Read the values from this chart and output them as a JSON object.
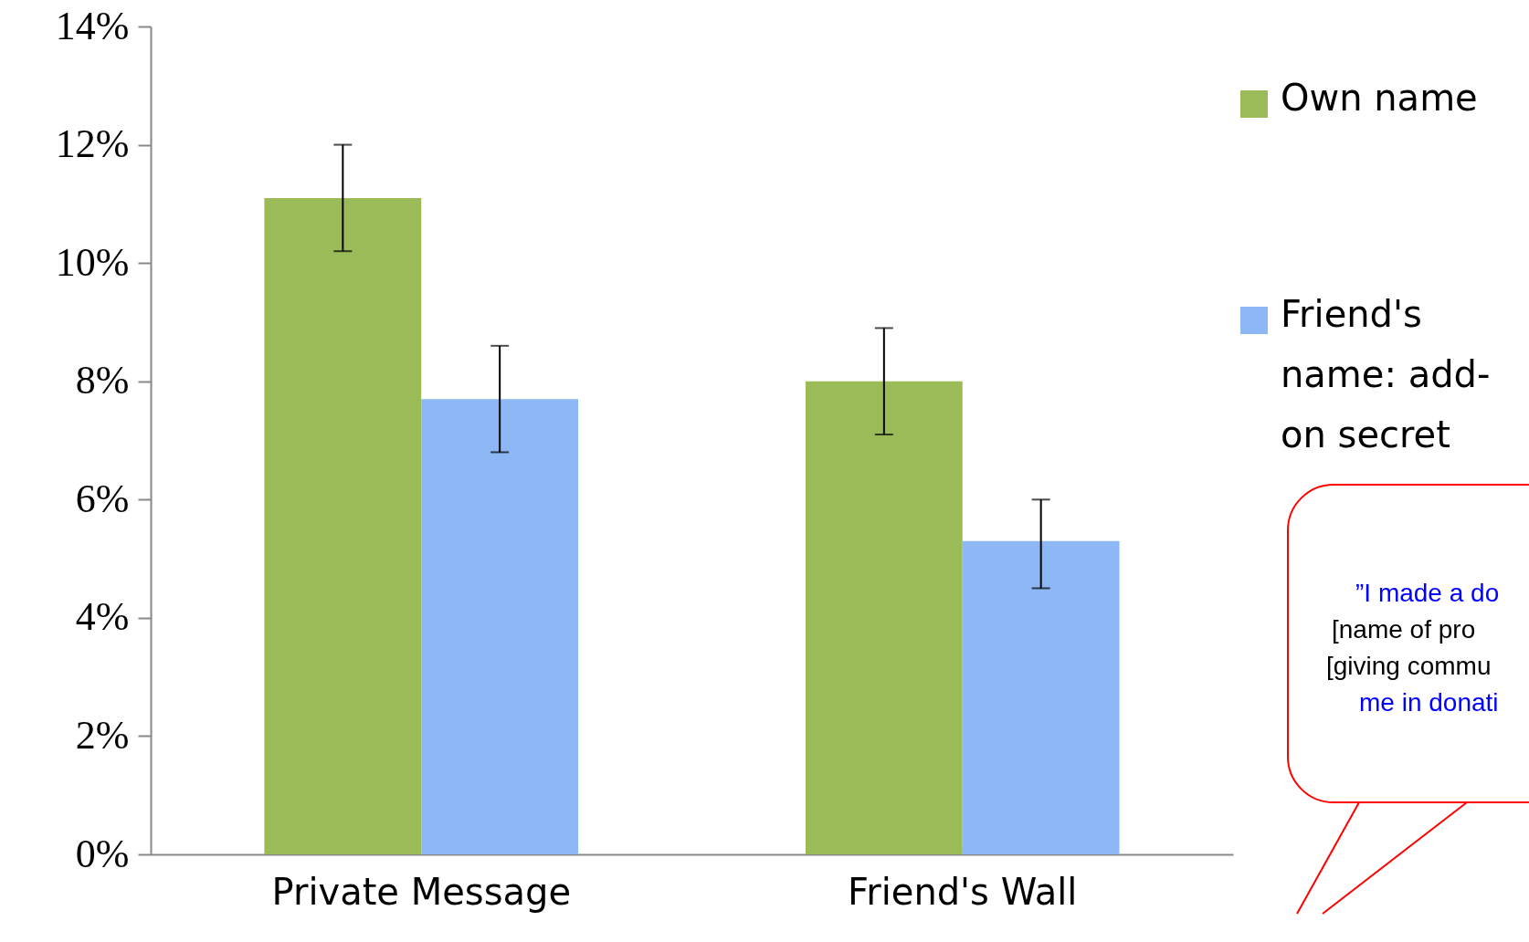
{
  "chart_data": {
    "type": "bar",
    "categories": [
      "Private Message",
      "Friend's Wall"
    ],
    "series": [
      {
        "name": "Own name",
        "color": "#9bbb59",
        "values": [
          11.1,
          8.0
        ],
        "errors": [
          [
            10.2,
            12.0
          ],
          [
            7.1,
            8.9
          ]
        ]
      },
      {
        "name": "Friend's name: add-on secret",
        "color": "#8db8f5",
        "values": [
          7.7,
          5.3
        ],
        "errors": [
          [
            6.8,
            8.6
          ],
          [
            4.5,
            6.0
          ]
        ]
      }
    ],
    "ylim": [
      0,
      14
    ],
    "yticks": [
      {
        "value": 0,
        "label": "0%"
      },
      {
        "value": 2,
        "label": "2%"
      },
      {
        "value": 4,
        "label": "4%"
      },
      {
        "value": 6,
        "label": "6%"
      },
      {
        "value": 8,
        "label": "8%"
      },
      {
        "value": 10,
        "label": "10%"
      },
      {
        "value": 12,
        "label": "12%"
      },
      {
        "value": 14,
        "label": "14%"
      }
    ],
    "grid": false,
    "legend": "right",
    "annotations": [
      "”I made a do",
      "[name of pro",
      "[giving commu",
      "me in donati"
    ]
  }
}
